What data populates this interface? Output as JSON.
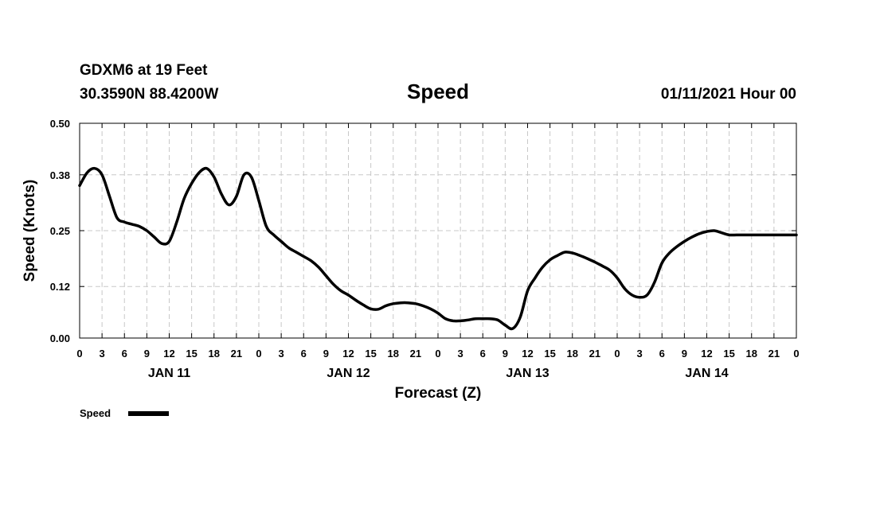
{
  "header": {
    "station": "GDXM6 at 19 Feet",
    "location": "30.3590N 88.4200W",
    "title": "Speed",
    "datetime": "01/11/2021 Hour 00"
  },
  "chart_data": {
    "type": "line",
    "title": "Speed",
    "xlabel": "Forecast (Z)",
    "ylabel": "Speed (Knots)",
    "ylim": [
      0,
      0.5
    ],
    "xlim": [
      0,
      96
    ],
    "x_unit": "hours from 01/11/2021 00Z",
    "y_ticks": [
      0.0,
      0.12,
      0.25,
      0.38,
      0.5
    ],
    "y_tick_labels": [
      "0.00",
      "0.12",
      "0.25",
      "0.38",
      "0.50"
    ],
    "x_tick_hours": [
      0,
      3,
      6,
      9,
      12,
      15,
      18,
      21,
      24,
      27,
      30,
      33,
      36,
      39,
      42,
      45,
      48,
      51,
      54,
      57,
      60,
      63,
      66,
      69,
      72,
      75,
      78,
      81,
      84,
      87,
      90,
      93,
      96
    ],
    "x_tick_labels": [
      "0",
      "3",
      "6",
      "9",
      "12",
      "15",
      "18",
      "21",
      "0",
      "3",
      "6",
      "9",
      "12",
      "15",
      "18",
      "21",
      "0",
      "3",
      "6",
      "9",
      "12",
      "15",
      "18",
      "21",
      "0",
      "3",
      "6",
      "9",
      "12",
      "15",
      "18",
      "21",
      "0"
    ],
    "day_labels": [
      {
        "hour": 12,
        "label": "JAN 11"
      },
      {
        "hour": 36,
        "label": "JAN 12"
      },
      {
        "hour": 60,
        "label": "JAN 13"
      },
      {
        "hour": 84,
        "label": "JAN 14"
      }
    ],
    "legend_position": "bottom-left",
    "series": [
      {
        "name": "Speed",
        "color": "#000000",
        "x": [
          0,
          1,
          2,
          3,
          4,
          5,
          6,
          7,
          8,
          9,
          10,
          11,
          12,
          13,
          14,
          15,
          16,
          17,
          18,
          19,
          20,
          21,
          22,
          23,
          24,
          25,
          26,
          27,
          28,
          29,
          30,
          31,
          32,
          33,
          34,
          35,
          36,
          37,
          38,
          39,
          40,
          41,
          42,
          43,
          44,
          45,
          46,
          47,
          48,
          49,
          50,
          51,
          52,
          53,
          54,
          55,
          56,
          57,
          58,
          59,
          60,
          61,
          62,
          63,
          64,
          65,
          66,
          67,
          68,
          69,
          70,
          71,
          72,
          73,
          74,
          75,
          76,
          77,
          78,
          79,
          80,
          81,
          82,
          83,
          84,
          85,
          86,
          87,
          88,
          89,
          90,
          91,
          92,
          93,
          94,
          95,
          96
        ],
        "values": [
          0.355,
          0.385,
          0.395,
          0.38,
          0.33,
          0.28,
          0.27,
          0.265,
          0.26,
          0.25,
          0.235,
          0.22,
          0.225,
          0.27,
          0.325,
          0.36,
          0.385,
          0.395,
          0.375,
          0.335,
          0.31,
          0.33,
          0.38,
          0.375,
          0.32,
          0.26,
          0.24,
          0.225,
          0.21,
          0.2,
          0.19,
          0.18,
          0.165,
          0.145,
          0.125,
          0.11,
          0.1,
          0.088,
          0.077,
          0.068,
          0.067,
          0.075,
          0.08,
          0.082,
          0.082,
          0.08,
          0.075,
          0.068,
          0.058,
          0.045,
          0.04,
          0.04,
          0.042,
          0.045,
          0.045,
          0.045,
          0.042,
          0.03,
          0.022,
          0.048,
          0.11,
          0.14,
          0.165,
          0.182,
          0.192,
          0.2,
          0.198,
          0.192,
          0.185,
          0.177,
          0.168,
          0.158,
          0.14,
          0.115,
          0.1,
          0.095,
          0.1,
          0.13,
          0.175,
          0.198,
          0.213,
          0.225,
          0.235,
          0.243,
          0.248,
          0.25,
          0.245,
          0.24,
          0.24,
          0.24,
          0.24,
          0.24,
          0.24,
          0.24,
          0.24,
          0.24,
          0.24
        ]
      }
    ]
  }
}
